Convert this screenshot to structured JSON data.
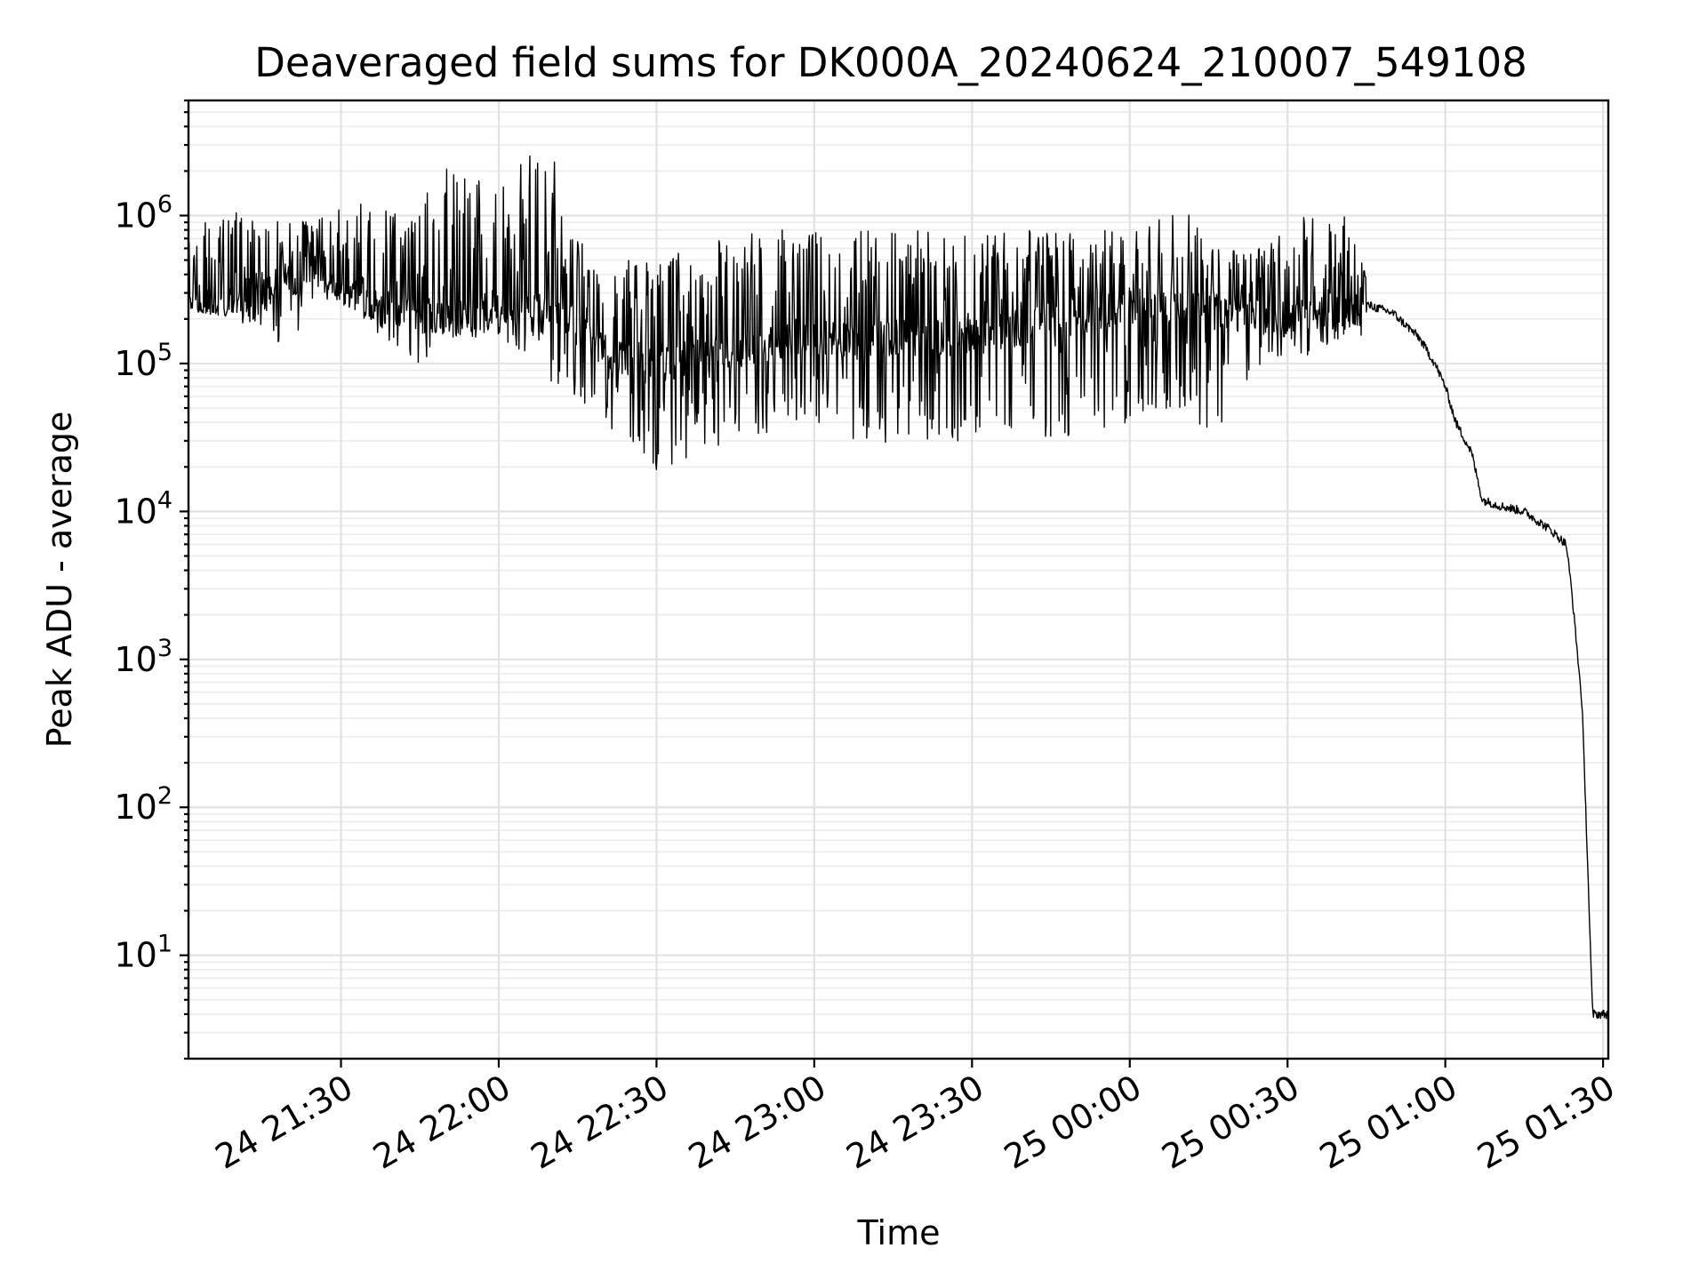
{
  "chart_data": {
    "type": "line",
    "title": "Deaveraged field sums for DK000A_20240624_210007_549108",
    "xlabel": "Time",
    "ylabel": "Peak ADU - average",
    "xscale": "time",
    "yscale": "log",
    "grid": true,
    "x_range": [
      "2024-06-24 21:01",
      "2024-06-25 01:31"
    ],
    "ylim": [
      2,
      6000000
    ],
    "x_ticks": [
      {
        "value": "2024-06-24 21:30",
        "label": "24 21:30"
      },
      {
        "value": "2024-06-24 22:00",
        "label": "24 22:00"
      },
      {
        "value": "2024-06-24 22:30",
        "label": "24 22:30"
      },
      {
        "value": "2024-06-24 23:00",
        "label": "24 23:00"
      },
      {
        "value": "2024-06-24 23:30",
        "label": "24 23:30"
      },
      {
        "value": "2024-06-25 00:00",
        "label": "25 00:00"
      },
      {
        "value": "2024-06-25 00:30",
        "label": "25 00:30"
      },
      {
        "value": "2024-06-25 01:00",
        "label": "25 01:00"
      },
      {
        "value": "2024-06-25 01:30",
        "label": "25 01:30"
      }
    ],
    "y_ticks": [
      {
        "value": 10,
        "base": "10",
        "exp": "1"
      },
      {
        "value": 100,
        "base": "10",
        "exp": "2"
      },
      {
        "value": 1000,
        "base": "10",
        "exp": "3"
      },
      {
        "value": 10000,
        "base": "10",
        "exp": "4"
      },
      {
        "value": 100000,
        "base": "10",
        "exp": "5"
      },
      {
        "value": 1000000,
        "base": "10",
        "exp": "6"
      }
    ],
    "series": [
      {
        "color": "#000000",
        "envelope": [
          {
            "x": "2024-06-24 21:01",
            "low": 230000,
            "high": 800000
          },
          {
            "x": "2024-06-24 21:10",
            "low": 200000,
            "high": 1100000
          },
          {
            "x": "2024-06-24 21:20",
            "low": 110000,
            "high": 900000
          },
          {
            "x": "2024-06-24 21:25",
            "low": 300000,
            "high": 1000000
          },
          {
            "x": "2024-06-24 21:35",
            "low": 180000,
            "high": 1300000
          },
          {
            "x": "2024-06-24 21:45",
            "low": 100000,
            "high": 1200000
          },
          {
            "x": "2024-06-24 21:50",
            "low": 150000,
            "high": 2300000
          },
          {
            "x": "2024-06-24 22:00",
            "low": 150000,
            "high": 1500000
          },
          {
            "x": "2024-06-24 22:07",
            "low": 100000,
            "high": 3000000
          },
          {
            "x": "2024-06-24 22:10",
            "low": 70000,
            "high": 2800000
          },
          {
            "x": "2024-06-24 22:15",
            "low": 60000,
            "high": 700000
          },
          {
            "x": "2024-06-24 22:20",
            "low": 40000,
            "high": 500000
          },
          {
            "x": "2024-06-24 22:30",
            "low": 18000,
            "high": 500000
          },
          {
            "x": "2024-06-24 22:45",
            "low": 30000,
            "high": 800000
          },
          {
            "x": "2024-06-24 23:00",
            "low": 40000,
            "high": 800000
          },
          {
            "x": "2024-06-24 23:10",
            "low": 28000,
            "high": 800000
          },
          {
            "x": "2024-06-24 23:30",
            "low": 30000,
            "high": 800000
          },
          {
            "x": "2024-06-24 23:45",
            "low": 30000,
            "high": 800000
          },
          {
            "x": "2024-06-25 00:00",
            "low": 40000,
            "high": 800000
          },
          {
            "x": "2024-06-25 00:10",
            "low": 50000,
            "high": 1300000
          },
          {
            "x": "2024-06-25 00:15",
            "low": 27000,
            "high": 600000
          },
          {
            "x": "2024-06-25 00:25",
            "low": 100000,
            "high": 600000
          },
          {
            "x": "2024-06-25 00:35",
            "low": 100000,
            "high": 1200000
          },
          {
            "x": "2024-06-25 00:40",
            "low": 150000,
            "high": 1300000
          },
          {
            "x": "2024-06-25 00:45",
            "low": 150000,
            "high": 400000
          }
        ],
        "trend": [
          {
            "x": "2024-06-24 21:01",
            "y": 250000
          },
          {
            "x": "2024-06-24 21:15",
            "y": 300000
          },
          {
            "x": "2024-06-24 21:25",
            "y": 450000
          },
          {
            "x": "2024-06-24 21:35",
            "y": 250000
          },
          {
            "x": "2024-06-24 21:50",
            "y": 200000
          },
          {
            "x": "2024-06-24 22:00",
            "y": 250000
          },
          {
            "x": "2024-06-24 22:10",
            "y": 250000
          },
          {
            "x": "2024-06-24 22:20",
            "y": 120000
          },
          {
            "x": "2024-06-24 22:30",
            "y": 100000
          },
          {
            "x": "2024-06-24 23:00",
            "y": 150000
          },
          {
            "x": "2024-06-24 23:30",
            "y": 150000
          },
          {
            "x": "2024-06-25 00:00",
            "y": 250000
          },
          {
            "x": "2024-06-25 00:30",
            "y": 200000
          },
          {
            "x": "2024-06-25 00:45",
            "y": 250000
          },
          {
            "x": "2024-06-25 00:50",
            "y": 220000
          },
          {
            "x": "2024-06-25 00:55",
            "y": 150000
          },
          {
            "x": "2024-06-25 00:58",
            "y": 100000
          },
          {
            "x": "2024-06-25 01:00",
            "y": 70000
          },
          {
            "x": "2024-06-25 01:02",
            "y": 40000
          },
          {
            "x": "2024-06-25 01:05",
            "y": 25000
          },
          {
            "x": "2024-06-25 01:07",
            "y": 12000
          },
          {
            "x": "2024-06-25 01:10",
            "y": 11000
          },
          {
            "x": "2024-06-25 01:15",
            "y": 10000
          },
          {
            "x": "2024-06-25 01:20",
            "y": 7500
          },
          {
            "x": "2024-06-25 01:23",
            "y": 6000
          },
          {
            "x": "2024-06-25 01:24",
            "y": 3000
          },
          {
            "x": "2024-06-25 01:26",
            "y": 500
          },
          {
            "x": "2024-06-25 01:27",
            "y": 50
          },
          {
            "x": "2024-06-25 01:28",
            "y": 4
          },
          {
            "x": "2024-06-25 01:31",
            "y": 4
          }
        ]
      }
    ]
  }
}
